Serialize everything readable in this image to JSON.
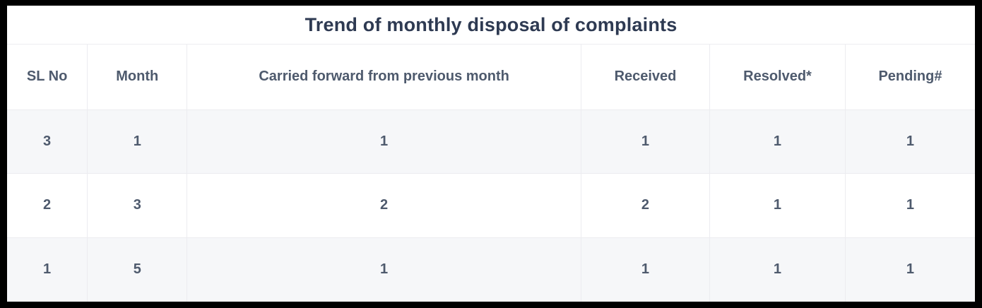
{
  "title": "Trend of monthly disposal of complaints",
  "table": {
    "columns": [
      {
        "key": "sl-no",
        "label": "SL No"
      },
      {
        "key": "month",
        "label": "Month"
      },
      {
        "key": "carried-forward",
        "label": "Carried forward from previous month"
      },
      {
        "key": "received",
        "label": "Received"
      },
      {
        "key": "resolved",
        "label": "Resolved*"
      },
      {
        "key": "pending",
        "label": "Pending#"
      }
    ],
    "column_widths_pct": [
      8.3,
      10.3,
      40.7,
      13.3,
      14.0,
      13.4
    ],
    "rows": [
      {
        "sl_no": "3",
        "month": "1",
        "carried_forward": "1",
        "received": "1",
        "resolved": "1",
        "pending": "1"
      },
      {
        "sl_no": "2",
        "month": "3",
        "carried_forward": "2",
        "received": "2",
        "resolved": "1",
        "pending": "1"
      },
      {
        "sl_no": "1",
        "month": "5",
        "carried_forward": "1",
        "received": "1",
        "resolved": "1",
        "pending": "1"
      }
    ]
  },
  "colors": {
    "outer_border": "#000000",
    "panel_background": "#ffffff",
    "stripe_row_background": "#f6f7f9",
    "grid_line": "#ececf0",
    "title_text": "#2e3a52",
    "cell_text": "#4e5a6d"
  }
}
